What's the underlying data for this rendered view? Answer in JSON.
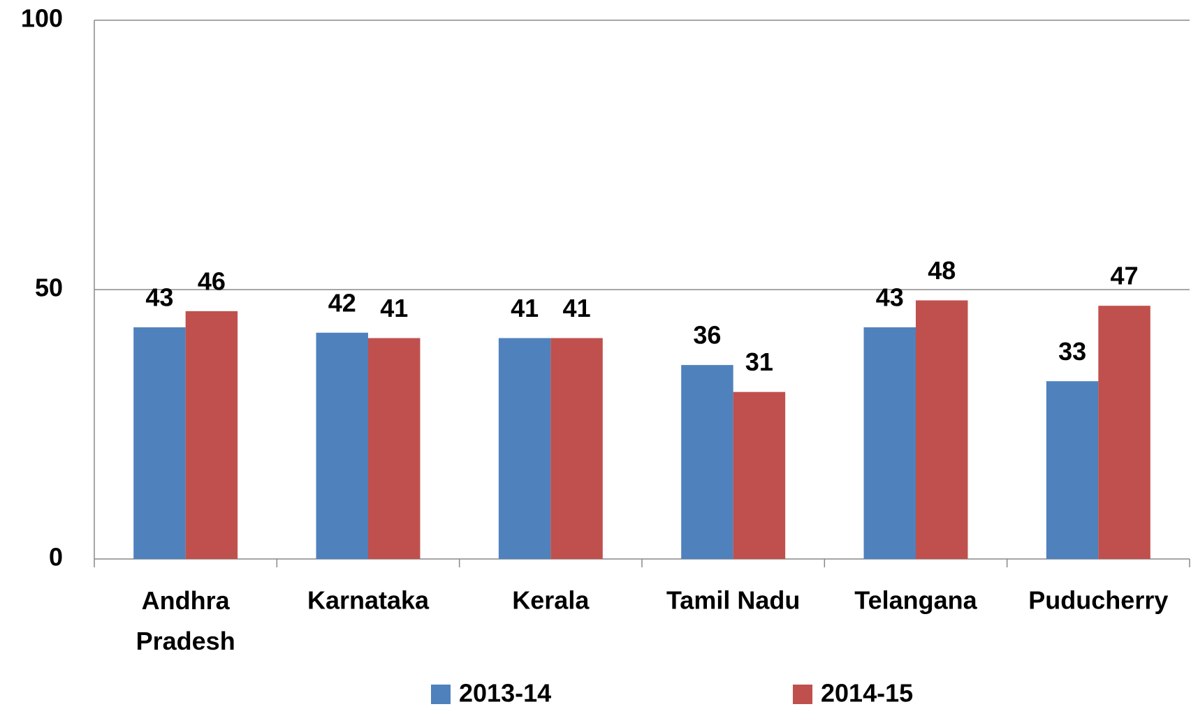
{
  "chart_data": {
    "type": "bar",
    "categories": [
      "Andhra Pradesh",
      "Karnataka",
      "Kerala",
      "Tamil Nadu",
      "Telangana",
      "Puducherry"
    ],
    "series": [
      {
        "name": "2013-14",
        "color": "#4f81bd",
        "values": [
          43,
          42,
          41,
          36,
          43,
          33
        ]
      },
      {
        "name": "2014-15",
        "color": "#c0504d",
        "values": [
          46,
          41,
          41,
          31,
          48,
          47
        ]
      }
    ],
    "ylim": [
      0,
      100
    ],
    "yticks": [
      0,
      50,
      100
    ],
    "grid": true,
    "legend": "bottom"
  }
}
